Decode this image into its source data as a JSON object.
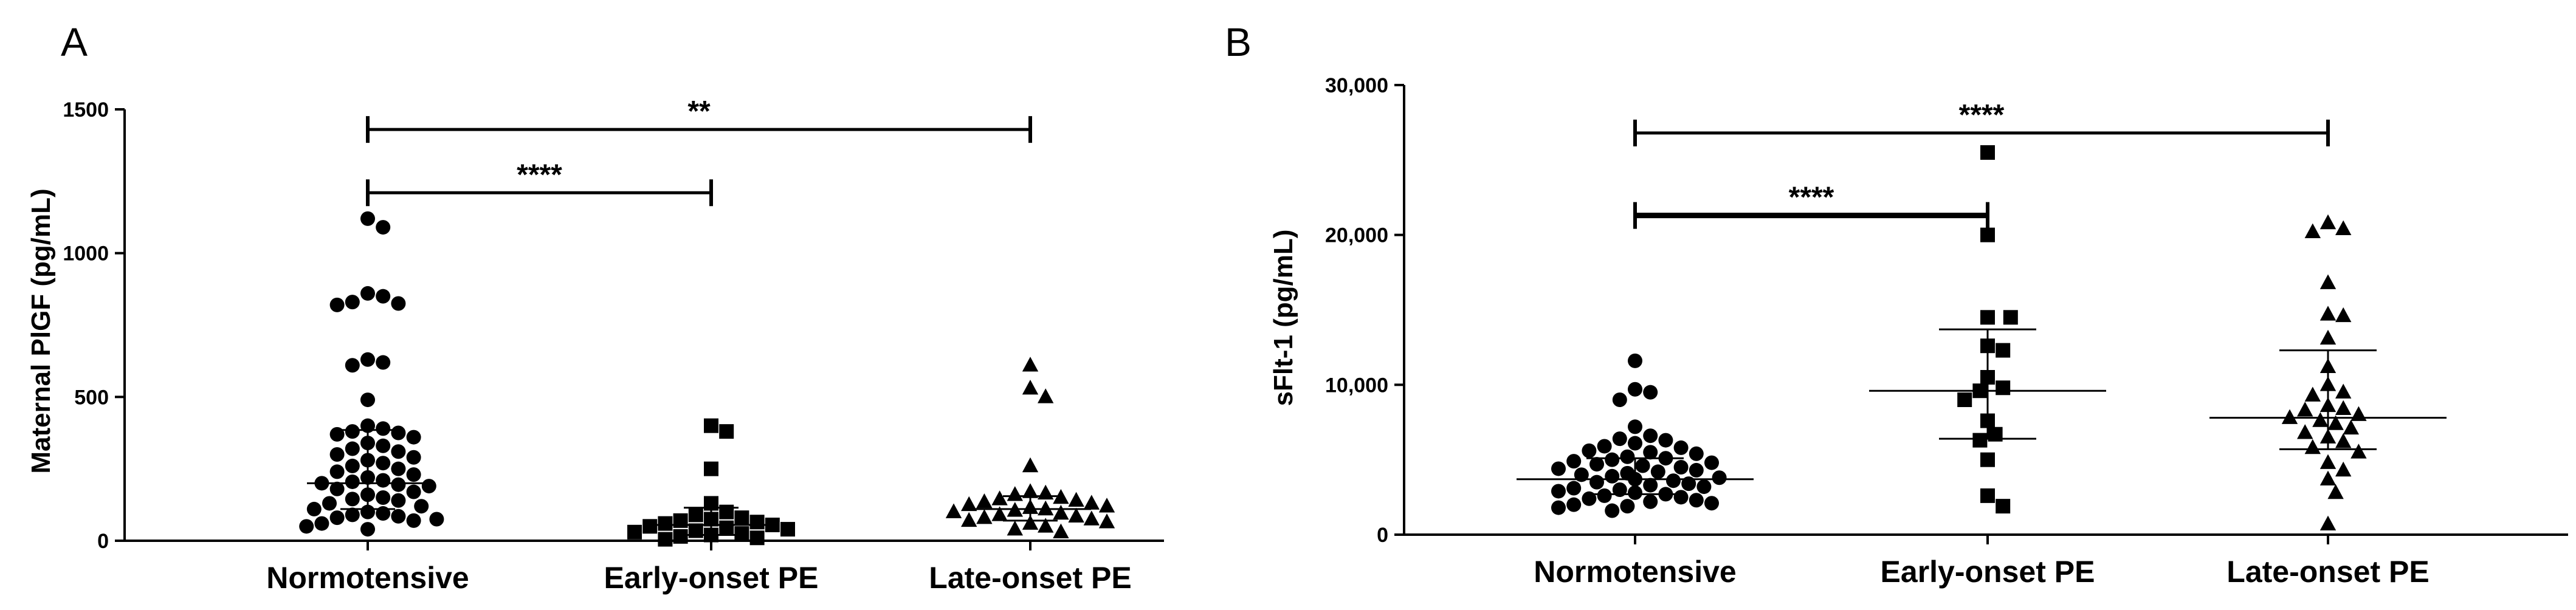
{
  "figure": {
    "panels": [
      "A",
      "B"
    ]
  },
  "chart_data": [
    {
      "panel": "A",
      "type": "scatter",
      "title": "",
      "xlabel": "",
      "ylabel": "Maternal PlGF (pg/mL)",
      "categories": [
        "Normotensive",
        "Early-onset PE",
        "Late-onset PE"
      ],
      "ylim": [
        0,
        1500
      ],
      "yticks": [
        0,
        500,
        1000,
        1500
      ],
      "ytick_labels": [
        "0",
        "500",
        "1000",
        "1500"
      ],
      "markers": [
        "circle",
        "square",
        "triangle"
      ],
      "series": [
        {
          "name": "Normotensive",
          "marker": "circle",
          "median": 200,
          "q1": 110,
          "q3": 385,
          "values": [
            1120,
            1090,
            860,
            850,
            830,
            825,
            820,
            630,
            620,
            610,
            490,
            400,
            390,
            380,
            375,
            370,
            360,
            340,
            330,
            320,
            310,
            300,
            290,
            280,
            270,
            260,
            250,
            240,
            230,
            220,
            210,
            205,
            200,
            195,
            190,
            180,
            170,
            160,
            150,
            145,
            140,
            130,
            120,
            110,
            100,
            95,
            90,
            85,
            80,
            75,
            70,
            60,
            50,
            40
          ]
        },
        {
          "name": "Early-onset PE",
          "marker": "square",
          "median": 55,
          "q1": 20,
          "q3": 115,
          "values": [
            400,
            380,
            250,
            130,
            100,
            90,
            80,
            75,
            70,
            65,
            60,
            55,
            50,
            45,
            40,
            35,
            30,
            25,
            20,
            15,
            10,
            5
          ]
        },
        {
          "name": "Late-onset PE",
          "marker": "triangle",
          "median": 110,
          "q1": 70,
          "q3": 155,
          "values": [
            610,
            530,
            500,
            260,
            170,
            165,
            160,
            150,
            145,
            140,
            135,
            130,
            125,
            120,
            115,
            110,
            105,
            100,
            95,
            90,
            85,
            80,
            75,
            70,
            65,
            60,
            50,
            40,
            30
          ]
        }
      ],
      "significance": [
        {
          "from": "Normotensive",
          "to": "Late-onset PE",
          "label": "**",
          "y": 1430,
          "bold": false
        },
        {
          "from": "Normotensive",
          "to": "Early-onset PE",
          "label": "****",
          "y": 1210,
          "bold": false
        }
      ]
    },
    {
      "panel": "B",
      "type": "scatter",
      "title": "",
      "xlabel": "",
      "ylabel": "sFlt-1 (pg/mL)",
      "categories": [
        "Normotensive",
        "Early-onset PE",
        "Late-onset PE"
      ],
      "ylim": [
        0,
        30000
      ],
      "yticks": [
        0,
        10000,
        20000,
        30000
      ],
      "ytick_labels": [
        "0",
        "10,000",
        "20,000",
        "30,000"
      ],
      "markers": [
        "circle",
        "square",
        "triangle"
      ],
      "series": [
        {
          "name": "Normotensive",
          "marker": "circle",
          "median": 3700,
          "q1": 2700,
          "q3": 5100,
          "values": [
            11600,
            9700,
            9500,
            9000,
            7200,
            6600,
            6400,
            6300,
            6100,
            5900,
            5800,
            5600,
            5500,
            5400,
            5200,
            5100,
            5000,
            4900,
            4800,
            4700,
            4600,
            4500,
            4400,
            4300,
            4200,
            4100,
            4000,
            3900,
            3800,
            3700,
            3600,
            3500,
            3400,
            3300,
            3200,
            3100,
            3000,
            2900,
            2800,
            2700,
            2600,
            2500,
            2400,
            2300,
            2200,
            2100,
            2000,
            1900,
            1800,
            1600
          ]
        },
        {
          "name": "Early-onset PE",
          "marker": "square",
          "median": 9600,
          "q1": 6400,
          "q3": 13700,
          "values": [
            25500,
            20000,
            14500,
            14500,
            12600,
            12300,
            10500,
            9800,
            9600,
            9000,
            7600,
            6700,
            6300,
            5000,
            2600,
            1900
          ]
        },
        {
          "name": "Late-onset PE",
          "marker": "triangle",
          "median": 7800,
          "q1": 5700,
          "q3": 12300,
          "values": [
            20800,
            20400,
            20200,
            16800,
            14700,
            14600,
            13100,
            11200,
            10000,
            9500,
            9300,
            8600,
            8400,
            8300,
            8000,
            7800,
            7600,
            7400,
            7100,
            6800,
            6500,
            6200,
            5800,
            5500,
            4800,
            4300,
            3700,
            2800,
            700
          ]
        }
      ],
      "significance": [
        {
          "from": "Normotensive",
          "to": "Late-onset PE",
          "label": "****",
          "y": 26800,
          "bold": false
        },
        {
          "from": "Normotensive",
          "to": "Early-onset PE",
          "label": "****",
          "y": 21300,
          "bold": true
        }
      ]
    }
  ]
}
